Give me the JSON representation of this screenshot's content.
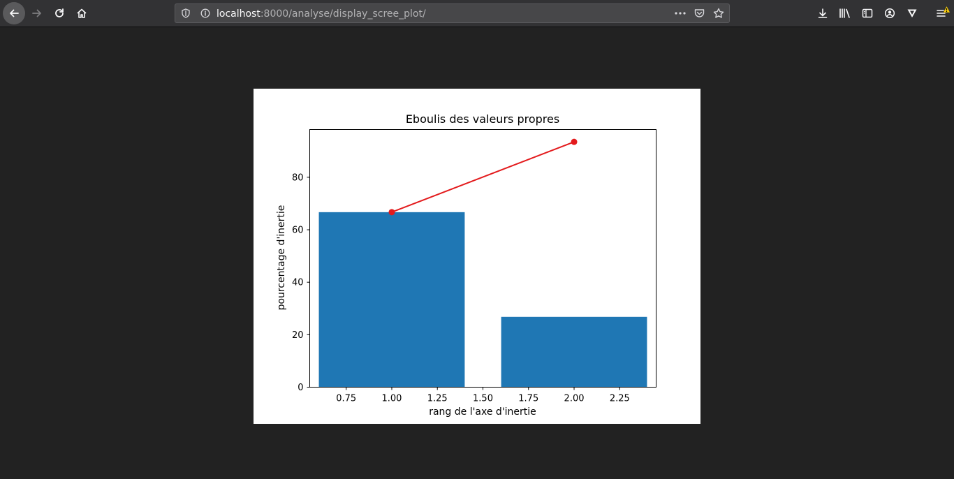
{
  "browser": {
    "url_host": "localhost",
    "url_path": ":8000/analyse/display_scree_plot/",
    "icons": [
      "back-icon",
      "forward-icon",
      "reload-icon",
      "home-icon",
      "shield-icon",
      "info-icon",
      "more-icon",
      "pocket-icon",
      "bookmark-star-icon",
      "download-icon",
      "library-icon",
      "sidebar-icon",
      "account-icon",
      "extension-icon",
      "menu-icon"
    ]
  },
  "chart_data": {
    "type": "bar",
    "title": "Eboulis des valeurs propres",
    "xlabel": "rang de l'axe d'inertie",
    "ylabel": "pourcentage d'inertie",
    "bars": {
      "x": [
        1,
        2
      ],
      "values": [
        66.7,
        26.8
      ],
      "color": "#1f77b4",
      "width": 0.8
    },
    "series": [
      {
        "type": "line",
        "x": [
          1,
          2
        ],
        "values": [
          66.7,
          93.5
        ],
        "color": "#e31a1c",
        "marker": "o"
      }
    ],
    "xlim": [
      0.55,
      2.45
    ],
    "ylim": [
      0,
      98.2
    ],
    "xticks": [
      0.75,
      1.0,
      1.25,
      1.5,
      1.75,
      2.0,
      2.25
    ],
    "xtick_labels": [
      "0.75",
      "1.00",
      "1.25",
      "1.50",
      "1.75",
      "2.00",
      "2.25"
    ],
    "yticks": [
      0,
      20,
      40,
      60,
      80
    ],
    "ytick_labels": [
      "0",
      "20",
      "40",
      "60",
      "80"
    ],
    "grid": false
  }
}
